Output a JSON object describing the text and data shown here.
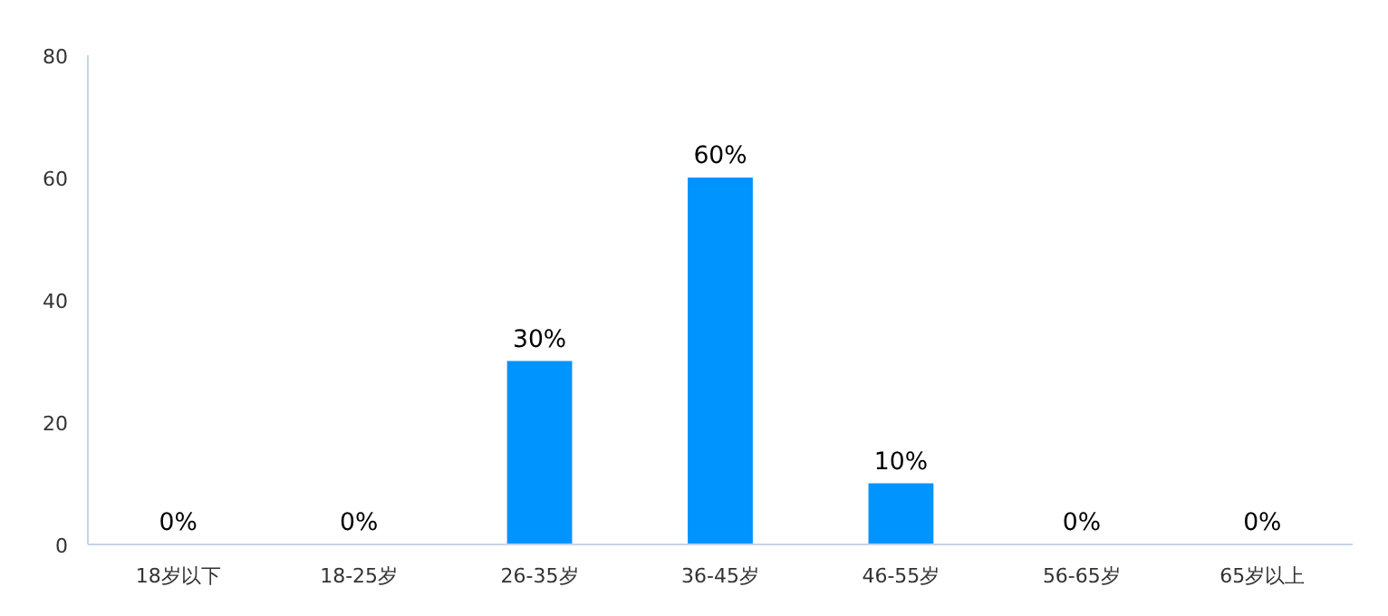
{
  "chart_data": {
    "type": "bar",
    "categories": [
      "18岁以下",
      "18-25岁",
      "26-35岁",
      "36-45岁",
      "46-55岁",
      "56-65岁",
      "65岁以上"
    ],
    "values": [
      0,
      0,
      30,
      60,
      10,
      0,
      0
    ],
    "value_labels": [
      "0%",
      "0%",
      "30%",
      "60%",
      "10%",
      "0%",
      "0%"
    ],
    "color": "#0094ff",
    "ylim": [
      0,
      80
    ],
    "yticks": [
      0,
      20,
      40,
      60,
      80
    ],
    "grid": false
  }
}
